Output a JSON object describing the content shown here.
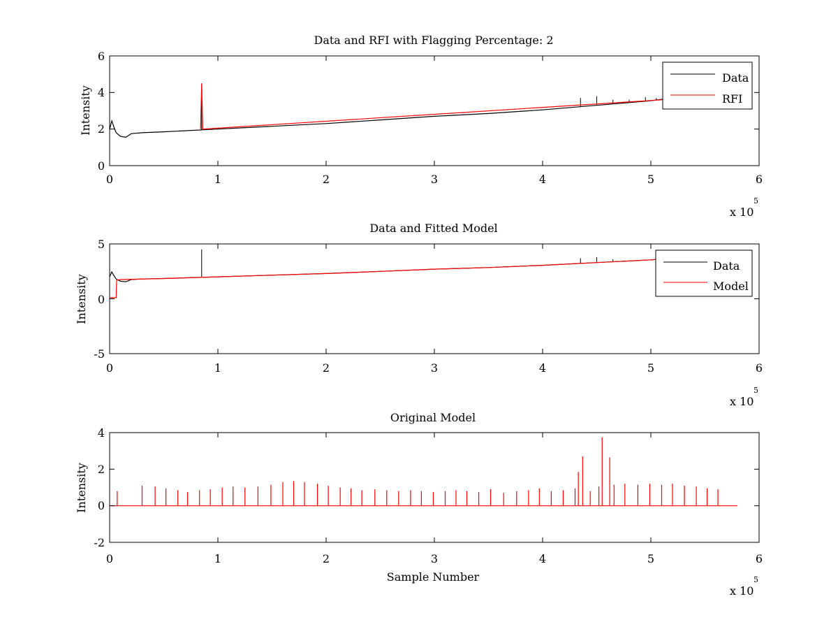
{
  "figure": {
    "background": "#ffffff",
    "colors": {
      "data": "#000000",
      "red": "#ff0000"
    }
  },
  "chart_data": [
    {
      "type": "line",
      "title": "Data and RFI with Flagging Percentage: 2",
      "xlabel": "",
      "ylabel": "Intensity",
      "xlim": [
        0,
        6
      ],
      "ylim": [
        0,
        6
      ],
      "x_exponent_label": "x 10",
      "x_exponent": "5",
      "xticks": [
        "0",
        "1",
        "2",
        "3",
        "4",
        "5",
        "6"
      ],
      "yticks": [
        "0",
        "2",
        "4",
        "6"
      ],
      "grid": false,
      "legend_position": "top-right",
      "series": [
        {
          "name": "Data",
          "color": "#000000",
          "x": [
            0,
            0.02,
            0.04,
            0.06,
            0.1,
            0.15,
            0.2,
            0.3,
            0.5,
            1.0,
            1.5,
            2.0,
            2.5,
            3.0,
            3.5,
            4.0,
            4.5,
            5.0,
            5.2
          ],
          "y": [
            2.0,
            2.45,
            2.1,
            1.8,
            1.6,
            1.55,
            1.75,
            1.8,
            1.85,
            2.0,
            2.15,
            2.3,
            2.5,
            2.7,
            2.85,
            3.05,
            3.3,
            3.55,
            3.7
          ],
          "spikes": [
            [
              0.85,
              4.5
            ],
            [
              4.35,
              3.7
            ],
            [
              4.5,
              3.8
            ],
            [
              4.65,
              3.6
            ],
            [
              4.8,
              3.6
            ],
            [
              4.95,
              3.75
            ],
            [
              5.05,
              3.7
            ]
          ]
        },
        {
          "name": "RFI",
          "color": "#ff0000",
          "x": [
            0.84,
            0.85,
            0.86,
            5.1,
            5.15,
            5.2
          ],
          "y": [
            2.0,
            4.5,
            2.0,
            3.6,
            3.75,
            3.7
          ]
        }
      ]
    },
    {
      "type": "line",
      "title": "Data and Fitted Model",
      "xlabel": "",
      "ylabel": "Intensity",
      "xlim": [
        0,
        6
      ],
      "ylim": [
        -5,
        5
      ],
      "x_exponent_label": "x 10",
      "x_exponent": "5",
      "xticks": [
        "0",
        "1",
        "2",
        "3",
        "4",
        "5",
        "6"
      ],
      "yticks": [
        "-5",
        "0",
        "5"
      ],
      "grid": false,
      "legend_position": "top-right",
      "series": [
        {
          "name": "Data",
          "color": "#000000",
          "x": [
            0,
            0.02,
            0.04,
            0.06,
            0.1,
            0.15,
            0.2,
            0.3,
            0.5,
            1.0,
            1.5,
            2.0,
            2.5,
            3.0,
            3.5,
            4.0,
            4.5,
            5.0,
            5.2
          ],
          "y": [
            2.0,
            2.45,
            2.1,
            1.8,
            1.6,
            1.55,
            1.75,
            1.8,
            1.85,
            2.0,
            2.15,
            2.3,
            2.5,
            2.7,
            2.85,
            3.05,
            3.3,
            3.55,
            3.7
          ],
          "spikes": [
            [
              0.85,
              4.5
            ],
            [
              4.35,
              3.7
            ],
            [
              4.5,
              3.8
            ],
            [
              4.65,
              3.6
            ]
          ]
        },
        {
          "name": "Model",
          "color": "#ff0000",
          "x": [
            0,
            0.06,
            0.065,
            0.1,
            0.5,
            1.0,
            1.5,
            2.0,
            2.5,
            3.0,
            3.5,
            4.0,
            4.5,
            5.0,
            5.2
          ],
          "y": [
            0.1,
            0.1,
            1.7,
            1.75,
            1.85,
            2.0,
            2.15,
            2.3,
            2.5,
            2.7,
            2.85,
            3.05,
            3.3,
            3.55,
            3.7
          ]
        }
      ]
    },
    {
      "type": "line",
      "title": "Original Model",
      "xlabel": "Sample Number",
      "ylabel": "Intensity",
      "xlim": [
        0,
        6
      ],
      "ylim": [
        -2,
        4
      ],
      "x_exponent_label": "x 10",
      "x_exponent": "5",
      "xticks": [
        "0",
        "1",
        "2",
        "3",
        "4",
        "5",
        "6"
      ],
      "yticks": [
        "-2",
        "0",
        "2",
        "4"
      ],
      "grid": false,
      "legend_position": "",
      "series": [
        {
          "color": "#ff0000",
          "baseline": 0,
          "x_end": 5.8,
          "spikes": [
            [
              0.07,
              0.8
            ],
            [
              0.3,
              1.1
            ],
            [
              0.42,
              1.05
            ],
            [
              0.52,
              0.95
            ],
            [
              0.63,
              0.85
            ],
            [
              0.72,
              0.75
            ],
            [
              0.83,
              0.85
            ],
            [
              0.93,
              0.9
            ],
            [
              1.04,
              1.0
            ],
            [
              1.14,
              1.05
            ],
            [
              1.25,
              1.0
            ],
            [
              1.37,
              1.05
            ],
            [
              1.49,
              1.15
            ],
            [
              1.6,
              1.3
            ],
            [
              1.7,
              1.35
            ],
            [
              1.8,
              1.3
            ],
            [
              1.92,
              1.2
            ],
            [
              2.02,
              1.1
            ],
            [
              2.13,
              1.0
            ],
            [
              2.23,
              0.95
            ],
            [
              2.33,
              0.85
            ],
            [
              2.45,
              0.9
            ],
            [
              2.56,
              0.85
            ],
            [
              2.67,
              0.8
            ],
            [
              2.78,
              0.85
            ],
            [
              2.88,
              0.8
            ],
            [
              2.99,
              0.75
            ],
            [
              3.1,
              0.8
            ],
            [
              3.2,
              0.85
            ],
            [
              3.3,
              0.8
            ],
            [
              3.41,
              0.75
            ],
            [
              3.52,
              0.9
            ],
            [
              3.64,
              0.7
            ],
            [
              3.76,
              0.8
            ],
            [
              3.87,
              0.85
            ],
            [
              3.97,
              0.95
            ],
            [
              4.08,
              0.8
            ],
            [
              4.19,
              0.85
            ],
            [
              4.3,
              0.95
            ],
            [
              4.33,
              1.85
            ],
            [
              4.37,
              2.7
            ],
            [
              4.44,
              0.8
            ],
            [
              4.52,
              1.05
            ],
            [
              4.55,
              3.75
            ],
            [
              4.62,
              2.65
            ],
            [
              4.66,
              1.15
            ],
            [
              4.76,
              1.2
            ],
            [
              4.88,
              1.15
            ],
            [
              4.99,
              1.2
            ],
            [
              5.1,
              1.15
            ],
            [
              5.2,
              1.2
            ],
            [
              5.31,
              1.1
            ],
            [
              5.42,
              1.05
            ],
            [
              5.52,
              0.95
            ],
            [
              5.62,
              0.9
            ]
          ]
        }
      ]
    }
  ]
}
